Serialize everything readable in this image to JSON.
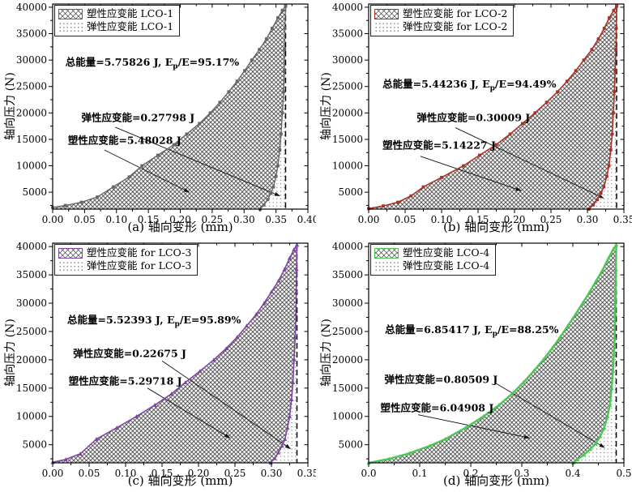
{
  "figure": {
    "background": "#ffffff"
  },
  "axes": {
    "y_min": 1800,
    "y_max": 40600,
    "y_ticks": [
      5000,
      10000,
      15000,
      20000,
      25000,
      30000,
      35000,
      40000
    ],
    "y_minor_step": 2500,
    "grid": false
  },
  "chart_data": [
    {
      "type": "area",
      "id": "a",
      "xlabel": "(a) 轴向变形 (mm)",
      "ylabel": "轴向压力 (N)",
      "x_min": 0,
      "x_max": 0.4,
      "x_ticks": [
        "0.00",
        "0.05",
        "0.10",
        "0.15",
        "0.20",
        "0.25",
        "0.30",
        "0.35",
        "0.40"
      ],
      "color": "#666666",
      "line_width": 1.4,
      "marker": "square",
      "dash_x": 0.365,
      "legend": {
        "plastic": "塑性应变能 LCO-1",
        "elastic": "弹性应变能 LCO-1"
      },
      "annotations": {
        "total": {
          "prefix": "总能量=5.75826 J, E",
          "sub": "p",
          "suffix": "/E=95.17%",
          "pos": [
            0.02,
            29400
          ]
        },
        "elastic": {
          "text": "弹性应变能=0.27798 J",
          "pos": [
            0.045,
            19100
          ],
          "arrow_from": [
            0.098,
            17300
          ],
          "arrow_to": [
            0.356,
            4300
          ]
        },
        "plastic": {
          "text": "塑性应变能=5.48028 J",
          "pos": [
            0.024,
            14800
          ],
          "arrow_from": [
            0.081,
            13000
          ],
          "arrow_to": [
            0.214,
            5000
          ]
        }
      },
      "series": {
        "loading": [
          [
            0,
            2100
          ],
          [
            0.02,
            2500
          ],
          [
            0.045,
            3100
          ],
          [
            0.07,
            4100
          ],
          [
            0.095,
            6000
          ],
          [
            0.12,
            7900
          ],
          [
            0.14,
            10000
          ],
          [
            0.165,
            12000
          ],
          [
            0.19,
            14000
          ],
          [
            0.21,
            16000
          ],
          [
            0.23,
            18000
          ],
          [
            0.247,
            20000
          ],
          [
            0.262,
            22000
          ],
          [
            0.276,
            24000
          ],
          [
            0.289,
            26000
          ],
          [
            0.301,
            28000
          ],
          [
            0.312,
            30000
          ],
          [
            0.324,
            32000
          ],
          [
            0.335,
            34000
          ],
          [
            0.344,
            36000
          ],
          [
            0.353,
            38000
          ],
          [
            0.36,
            39400
          ],
          [
            0.365,
            40200
          ]
        ],
        "unloading": [
          [
            0.365,
            40200
          ],
          [
            0.364,
            36000
          ],
          [
            0.3635,
            32000
          ],
          [
            0.363,
            28000
          ],
          [
            0.362,
            24000
          ],
          [
            0.36,
            20000
          ],
          [
            0.358,
            16000
          ],
          [
            0.356,
            13000
          ],
          [
            0.353,
            10000
          ],
          [
            0.35,
            8000
          ],
          [
            0.346,
            6000
          ],
          [
            0.342,
            4800
          ],
          [
            0.337,
            3600
          ],
          [
            0.331,
            2600
          ],
          [
            0.325,
            1800
          ]
        ]
      }
    },
    {
      "type": "area",
      "id": "b",
      "xlabel": "(b) 轴向变形 (mm)",
      "ylabel": "轴向压力 (N)",
      "x_min": 0,
      "x_max": 0.35,
      "x_ticks": [
        "0.00",
        "0.05",
        "0.10",
        "0.15",
        "0.20",
        "0.25",
        "0.30",
        "0.35"
      ],
      "color": "#a93226",
      "line_width": 1.6,
      "marker": "square",
      "dash_x": 0.34,
      "legend": {
        "plastic": "塑性应变能 for LCO-2",
        "elastic": "弹性应变能 for LCO-2"
      },
      "annotations": {
        "total": {
          "prefix": "总能量=5.44236 J, E",
          "sub": "p",
          "suffix": "/E=94.49%",
          "pos": [
            0.019,
            25300
          ]
        },
        "elastic": {
          "text": "弹性应变能=0.30009 J",
          "pos": [
            0.066,
            19200
          ],
          "arrow_from": [
            0.119,
            17200
          ],
          "arrow_to": [
            0.322,
            3900
          ]
        },
        "plastic": {
          "text": "塑性应变能=5.14227 J",
          "pos": [
            0.019,
            13900
          ],
          "arrow_from": [
            0.071,
            11800
          ],
          "arrow_to": [
            0.209,
            5300
          ]
        }
      },
      "series": {
        "loading": [
          [
            0,
            1900
          ],
          [
            0.02,
            2400
          ],
          [
            0.04,
            3100
          ],
          [
            0.058,
            4300
          ],
          [
            0.075,
            6000
          ],
          [
            0.1,
            7800
          ],
          [
            0.13,
            10000
          ],
          [
            0.152,
            12000
          ],
          [
            0.175,
            14000
          ],
          [
            0.194,
            16000
          ],
          [
            0.211,
            18000
          ],
          [
            0.228,
            20000
          ],
          [
            0.244,
            22000
          ],
          [
            0.259,
            24000
          ],
          [
            0.272,
            26000
          ],
          [
            0.284,
            28000
          ],
          [
            0.295,
            30000
          ],
          [
            0.306,
            32000
          ],
          [
            0.315,
            34000
          ],
          [
            0.323,
            36000
          ],
          [
            0.33,
            38000
          ],
          [
            0.336,
            39400
          ],
          [
            0.34,
            40200
          ]
        ],
        "unloading": [
          [
            0.34,
            40200
          ],
          [
            0.3395,
            36000
          ],
          [
            0.339,
            32000
          ],
          [
            0.338,
            28000
          ],
          [
            0.337,
            24000
          ],
          [
            0.3355,
            20000
          ],
          [
            0.334,
            16000
          ],
          [
            0.332,
            13000
          ],
          [
            0.3295,
            10000
          ],
          [
            0.3265,
            8000
          ],
          [
            0.3225,
            6000
          ],
          [
            0.3185,
            4800
          ],
          [
            0.3135,
            3600
          ],
          [
            0.308,
            2600
          ],
          [
            0.302,
            1800
          ]
        ]
      }
    },
    {
      "type": "area",
      "id": "c",
      "xlabel": "(c) 轴向变形 (mm)",
      "ylabel": "轴向压力 (N)",
      "x_min": 0,
      "x_max": 0.35,
      "x_ticks": [
        "0.00",
        "0.05",
        "0.10",
        "0.15",
        "0.20",
        "0.25",
        "0.30",
        "0.35"
      ],
      "color": "#7e44a5",
      "line_width": 1.6,
      "marker": "triangle",
      "dash_x": 0.335,
      "legend": {
        "plastic": "塑性应变能 for LCO-3",
        "elastic": "弹性应变能 for LCO-3"
      },
      "annotations": {
        "total": {
          "prefix": "总能量=5.52393 J, E",
          "sub": "p",
          "suffix": "/E=95.89%",
          "pos": [
            0.02,
            26800
          ]
        },
        "elastic": {
          "text": "弹性应变能=0.22675 J",
          "pos": [
            0.028,
            21200
          ],
          "arrow_from": [
            0.15,
            19800
          ],
          "arrow_to": [
            0.326,
            4300
          ]
        },
        "plastic": {
          "text": "塑性应变能=5.29718 J",
          "pos": [
            0.022,
            16300
          ],
          "arrow_from": [
            0.13,
            15000
          ],
          "arrow_to": [
            0.243,
            6200
          ]
        }
      },
      "series": {
        "loading": [
          [
            0,
            1900
          ],
          [
            0.018,
            2400
          ],
          [
            0.038,
            3400
          ],
          [
            0.06,
            6000
          ],
          [
            0.088,
            8000
          ],
          [
            0.115,
            10000
          ],
          [
            0.14,
            12000
          ],
          [
            0.163,
            14000
          ],
          [
            0.182,
            16000
          ],
          [
            0.202,
            18000
          ],
          [
            0.221,
            20000
          ],
          [
            0.238,
            22000
          ],
          [
            0.253,
            24000
          ],
          [
            0.266,
            26000
          ],
          [
            0.279,
            28000
          ],
          [
            0.29,
            30000
          ],
          [
            0.3,
            32000
          ],
          [
            0.31,
            34000
          ],
          [
            0.318,
            36000
          ],
          [
            0.325,
            38000
          ],
          [
            0.331,
            39500
          ],
          [
            0.335,
            40300
          ]
        ],
        "unloading": [
          [
            0.335,
            40300
          ],
          [
            0.3345,
            36000
          ],
          [
            0.334,
            32000
          ],
          [
            0.3335,
            28000
          ],
          [
            0.3325,
            24000
          ],
          [
            0.331,
            20000
          ],
          [
            0.3295,
            16000
          ],
          [
            0.3275,
            13000
          ],
          [
            0.325,
            10000
          ],
          [
            0.322,
            8000
          ],
          [
            0.3185,
            6000
          ],
          [
            0.3145,
            4800
          ],
          [
            0.3095,
            3600
          ],
          [
            0.3045,
            2600
          ],
          [
            0.299,
            1800
          ]
        ]
      }
    },
    {
      "type": "area",
      "id": "d",
      "xlabel": "(d) 轴向变形 (mm)",
      "ylabel": "轴向压力 (N)",
      "x_min": 0,
      "x_max": 0.5,
      "x_ticks": [
        "0.0",
        "0.1",
        "0.2",
        "0.3",
        "0.4",
        "0.5"
      ],
      "color": "#4cc653",
      "line_width": 2.4,
      "marker": "triangle",
      "dash_x": 0.485,
      "legend": {
        "plastic": "塑性应变能 LCO-4",
        "elastic": "弹性应变能 LCO-4"
      },
      "annotations": {
        "total": {
          "prefix": "总能量=6.85417 J, E",
          "sub": "p",
          "suffix": "/E=88.25%",
          "pos": [
            0.032,
            25200
          ]
        },
        "elastic": {
          "text": "弹性应变能=0.80509 J",
          "pos": [
            0.031,
            16500
          ],
          "arrow_from": [
            0.25,
            15800
          ],
          "arrow_to": [
            0.462,
            4500
          ]
        },
        "plastic": {
          "text": "塑性应变能=6.04908 J",
          "pos": [
            0.023,
            11500
          ],
          "arrow_from": [
            0.097,
            10300
          ],
          "arrow_to": [
            0.315,
            6200
          ]
        }
      },
      "series": {
        "loading": [
          [
            0,
            1800
          ],
          [
            0.04,
            2500
          ],
          [
            0.08,
            3500
          ],
          [
            0.12,
            4800
          ],
          [
            0.15,
            6000
          ],
          [
            0.19,
            8000
          ],
          [
            0.225,
            10000
          ],
          [
            0.255,
            12000
          ],
          [
            0.281,
            14000
          ],
          [
            0.303,
            16000
          ],
          [
            0.323,
            18000
          ],
          [
            0.342,
            20000
          ],
          [
            0.359,
            22000
          ],
          [
            0.375,
            24000
          ],
          [
            0.39,
            26000
          ],
          [
            0.405,
            28000
          ],
          [
            0.419,
            30000
          ],
          [
            0.433,
            32000
          ],
          [
            0.446,
            34000
          ],
          [
            0.459,
            36000
          ],
          [
            0.47,
            38000
          ],
          [
            0.479,
            39500
          ],
          [
            0.485,
            40300
          ]
        ],
        "unloading": [
          [
            0.485,
            40300
          ],
          [
            0.4845,
            36000
          ],
          [
            0.484,
            32000
          ],
          [
            0.483,
            28000
          ],
          [
            0.4818,
            24000
          ],
          [
            0.4803,
            21000
          ],
          [
            0.4785,
            18000
          ],
          [
            0.476,
            15000
          ],
          [
            0.4725,
            12000
          ],
          [
            0.468,
            10000
          ],
          [
            0.4615,
            8000
          ],
          [
            0.4535,
            6500
          ],
          [
            0.4445,
            5200
          ],
          [
            0.434,
            4200
          ],
          [
            0.4215,
            3200
          ],
          [
            0.409,
            2400
          ],
          [
            0.401,
            1800
          ]
        ]
      }
    }
  ]
}
